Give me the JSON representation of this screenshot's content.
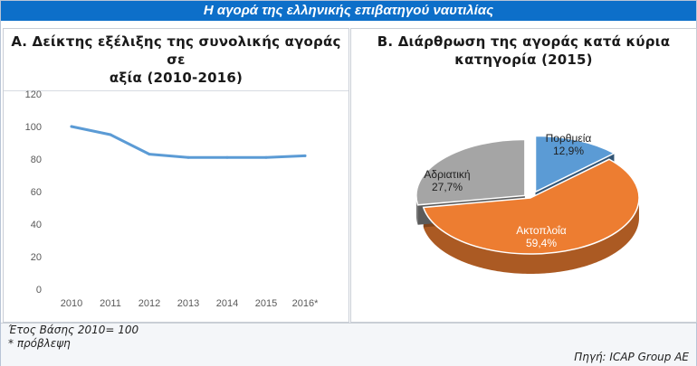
{
  "header": {
    "title": "Η αγορά της ελληνικής επιβατηγού ναυτιλίας"
  },
  "chart_data": [
    {
      "type": "line",
      "title": "Α. Δείκτης εξέλιξης της συνολικής αγοράς σε αξία (2010-2016)",
      "title_lines": [
        "Α. Δείκτης εξέλιξης της συνολικής αγοράς σε",
        "αξία (2010-2016)"
      ],
      "categories": [
        "2010",
        "2011",
        "2012",
        "2013",
        "2014",
        "2015",
        "2016*"
      ],
      "values": [
        100,
        95,
        83,
        81,
        81,
        81,
        82
      ],
      "ylim": [
        0,
        120
      ],
      "yticks": [
        0,
        20,
        40,
        60,
        80,
        100,
        120
      ],
      "grid": false,
      "color": "#5b9bd5"
    },
    {
      "type": "pie",
      "title": "Β. Διάρθρωση της αγοράς κατά κύρια κατηγορία (2015)",
      "title_lines": [
        "Β. Διάρθρωση της αγοράς κατά κύρια",
        "κατηγορία (2015)"
      ],
      "slices": [
        {
          "label": "Πορθμεία",
          "value": 12.9,
          "display": "12,9%",
          "color": "#5b9bd5"
        },
        {
          "label": "Ακτοπλοΐα",
          "value": 59.4,
          "display": "59,4%",
          "color": "#ed7d31"
        },
        {
          "label": "Αδριατική",
          "value": 27.7,
          "display": "27,7%",
          "color": "#a5a5a5"
        }
      ]
    }
  ],
  "footer": {
    "base_note": "Έτος Βάσης 2010= 100",
    "forecast_note": "* πρόβλεψη",
    "source": "Πηγή: ICAP Group AE"
  }
}
